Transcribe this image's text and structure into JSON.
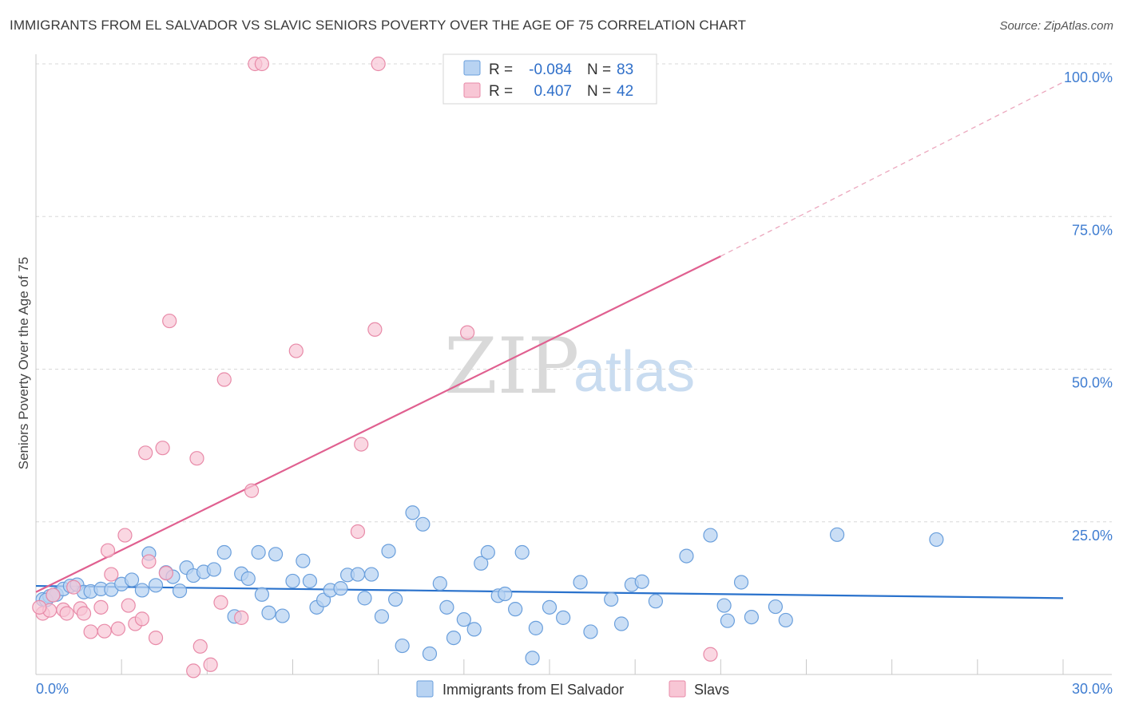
{
  "title": "IMMIGRANTS FROM EL SALVADOR VS SLAVIC SENIORS POVERTY OVER THE AGE OF 75 CORRELATION CHART",
  "source": "Source: ZipAtlas.com",
  "watermark": {
    "zip": "ZIP",
    "atlas": "atlas"
  },
  "legend": {
    "rows": [
      {
        "r_label": "R =",
        "r_value": "-0.084",
        "n_label": "N =",
        "n_value": "83"
      },
      {
        "r_label": "R =",
        "r_value": "0.407",
        "n_label": "N =",
        "n_value": "42"
      }
    ]
  },
  "colors": {
    "blue_fill": "#b8d3f2",
    "blue_stroke": "#6a9fdc",
    "blue_line": "#2a72cc",
    "pink_fill": "#f8c6d5",
    "pink_stroke": "#e88aa8",
    "pink_line": "#e06090",
    "grid": "#d8d8d8",
    "tick_text": "#3f7dd1"
  },
  "chart_data": {
    "type": "scatter",
    "title": "IMMIGRANTS FROM EL SALVADOR VS SLAVIC SENIORS POVERTY OVER THE AGE OF 75 CORRELATION CHART",
    "xlabel": "",
    "ylabel": "Seniors Poverty Over the Age of 75",
    "xlim": [
      0,
      30
    ],
    "ylim": [
      0,
      100
    ],
    "x_tick_labels": [
      "0.0%",
      "30.0%"
    ],
    "y_ticks": [
      25,
      50,
      75,
      100
    ],
    "y_tick_labels": [
      "25.0%",
      "50.0%",
      "75.0%",
      "100.0%"
    ],
    "grid": true,
    "legend_position": "bottom",
    "series": [
      {
        "name": "Immigrants from El Salvador",
        "color": "#b8d3f2",
        "R": -0.084,
        "N": 83,
        "trend": {
          "x0": 0,
          "y0": 14.5,
          "x1": 30,
          "y1": 12.5
        },
        "points": [
          [
            0.2,
            12.3
          ],
          [
            0.4,
            12.8
          ],
          [
            0.6,
            13.1
          ],
          [
            0.8,
            14.0
          ],
          [
            1.0,
            14.5
          ],
          [
            1.2,
            14.7
          ],
          [
            1.4,
            13.5
          ],
          [
            1.6,
            13.6
          ],
          [
            1.9,
            14.0
          ],
          [
            2.2,
            13.9
          ],
          [
            2.5,
            14.8
          ],
          [
            2.8,
            15.5
          ],
          [
            3.1,
            13.8
          ],
          [
            3.3,
            19.8
          ],
          [
            3.5,
            14.6
          ],
          [
            3.8,
            16.7
          ],
          [
            4.0,
            16.0
          ],
          [
            4.2,
            13.7
          ],
          [
            4.4,
            17.5
          ],
          [
            4.6,
            16.2
          ],
          [
            4.9,
            16.8
          ],
          [
            5.2,
            17.2
          ],
          [
            5.5,
            20.0
          ],
          [
            5.8,
            9.5
          ],
          [
            6.0,
            16.5
          ],
          [
            6.2,
            15.7
          ],
          [
            6.5,
            20.0
          ],
          [
            6.6,
            13.1
          ],
          [
            6.8,
            10.1
          ],
          [
            7.0,
            19.7
          ],
          [
            7.2,
            9.6
          ],
          [
            7.5,
            15.3
          ],
          [
            7.8,
            18.6
          ],
          [
            8.0,
            15.3
          ],
          [
            8.2,
            11.0
          ],
          [
            8.4,
            12.2
          ],
          [
            8.6,
            13.8
          ],
          [
            8.9,
            14.1
          ],
          [
            9.1,
            16.3
          ],
          [
            9.4,
            16.4
          ],
          [
            9.6,
            12.5
          ],
          [
            9.8,
            16.4
          ],
          [
            10.1,
            9.5
          ],
          [
            10.3,
            20.2
          ],
          [
            10.5,
            12.3
          ],
          [
            10.7,
            4.7
          ],
          [
            11.0,
            26.5
          ],
          [
            11.3,
            24.6
          ],
          [
            11.5,
            3.4
          ],
          [
            11.8,
            14.9
          ],
          [
            12.0,
            11.0
          ],
          [
            12.2,
            6.0
          ],
          [
            12.5,
            9.0
          ],
          [
            12.8,
            7.4
          ],
          [
            13.0,
            18.2
          ],
          [
            13.2,
            20.0
          ],
          [
            13.5,
            12.9
          ],
          [
            13.7,
            13.2
          ],
          [
            14.0,
            10.7
          ],
          [
            14.2,
            20.0
          ],
          [
            14.5,
            2.7
          ],
          [
            14.6,
            7.6
          ],
          [
            15.0,
            11.0
          ],
          [
            15.4,
            9.3
          ],
          [
            15.9,
            15.1
          ],
          [
            16.2,
            7.0
          ],
          [
            16.8,
            12.3
          ],
          [
            17.1,
            8.3
          ],
          [
            17.4,
            14.7
          ],
          [
            17.7,
            15.2
          ],
          [
            18.1,
            12.0
          ],
          [
            19.0,
            19.4
          ],
          [
            19.7,
            22.8
          ],
          [
            20.1,
            11.3
          ],
          [
            20.2,
            8.8
          ],
          [
            20.6,
            15.1
          ],
          [
            20.9,
            9.4
          ],
          [
            21.6,
            11.1
          ],
          [
            21.9,
            8.9
          ],
          [
            23.4,
            22.9
          ],
          [
            26.3,
            22.1
          ],
          [
            0.3,
            12.2
          ],
          [
            0.5,
            13.0
          ]
        ]
      },
      {
        "name": "Slavs",
        "color": "#f8c6d5",
        "R": 0.407,
        "N": 42,
        "trend": {
          "x0": 0,
          "y0": 13.5,
          "x1": 20,
          "y1": 68.5
        },
        "trend_extension": {
          "x0": 20,
          "y0": 68.5,
          "x1": 30,
          "y1": 97.0
        },
        "points": [
          [
            0.2,
            10.0
          ],
          [
            0.4,
            10.5
          ],
          [
            0.5,
            13.0
          ],
          [
            0.8,
            10.6
          ],
          [
            0.9,
            10.0
          ],
          [
            1.1,
            14.3
          ],
          [
            1.3,
            10.8
          ],
          [
            1.4,
            10.0
          ],
          [
            1.6,
            7.0
          ],
          [
            1.9,
            11.0
          ],
          [
            2.0,
            7.1
          ],
          [
            2.1,
            20.3
          ],
          [
            2.2,
            16.4
          ],
          [
            2.4,
            7.5
          ],
          [
            2.6,
            22.8
          ],
          [
            2.7,
            11.3
          ],
          [
            2.9,
            8.3
          ],
          [
            3.1,
            9.1
          ],
          [
            3.2,
            36.3
          ],
          [
            3.3,
            18.5
          ],
          [
            3.5,
            6.0
          ],
          [
            3.7,
            37.1
          ],
          [
            3.8,
            16.6
          ],
          [
            3.9,
            57.9
          ],
          [
            4.6,
            0.6
          ],
          [
            4.7,
            35.4
          ],
          [
            4.8,
            4.6
          ],
          [
            5.1,
            1.6
          ],
          [
            5.4,
            11.8
          ],
          [
            5.5,
            48.3
          ],
          [
            6.0,
            9.3
          ],
          [
            6.3,
            30.1
          ],
          [
            6.4,
            100.0
          ],
          [
            6.6,
            100.0
          ],
          [
            7.6,
            53.0
          ],
          [
            9.4,
            23.4
          ],
          [
            9.5,
            37.7
          ],
          [
            9.9,
            56.5
          ],
          [
            10.0,
            100.0
          ],
          [
            12.6,
            56.0
          ],
          [
            19.7,
            3.3
          ],
          [
            0.1,
            11.0
          ]
        ]
      }
    ]
  }
}
